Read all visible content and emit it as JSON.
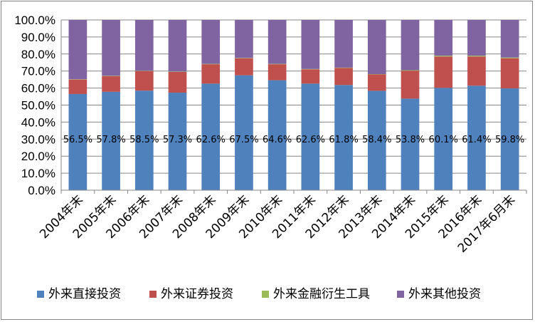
{
  "chart_data": {
    "type": "bar",
    "stacked": true,
    "percent_stacked": true,
    "categories": [
      "2004年末",
      "2005年末",
      "2006年末",
      "2007年末",
      "2008年末",
      "2009年末",
      "2010年末",
      "2011年末",
      "2012年末",
      "2013年末",
      "2014年末",
      "2015年末",
      "2016年末",
      "2017年6月末"
    ],
    "ylim": [
      0,
      100
    ],
    "yticks": [
      "0.0%",
      "10.0%",
      "20.0%",
      "30.0%",
      "40.0%",
      "50.0%",
      "60.0%",
      "70.0%",
      "80.0%",
      "90.0%",
      "100.0%"
    ],
    "grid": true,
    "legend_position": "bottom",
    "series": [
      {
        "name": "外来直接投资",
        "color": "#4f81bd",
        "values": [
          56.5,
          57.8,
          58.5,
          57.3,
          62.6,
          67.5,
          64.6,
          62.6,
          61.8,
          58.4,
          53.8,
          60.1,
          61.4,
          59.8
        ],
        "labels": [
          "56.5%",
          "57.8%",
          "58.5%",
          "57.3%",
          "62.6%",
          "67.5%",
          "64.6%",
          "62.6%",
          "61.8%",
          "58.4%",
          "53.8%",
          "60.1%",
          "61.4%",
          "59.8%"
        ]
      },
      {
        "name": "外来证券投资",
        "color": "#c0504d",
        "values": [
          8.5,
          9.2,
          11.5,
          12.2,
          11.4,
          10.0,
          9.4,
          8.4,
          10.0,
          9.6,
          16.4,
          18.4,
          17.1,
          17.7
        ]
      },
      {
        "name": "外来金融衍生工具",
        "color": "#9bbb59",
        "values": [
          0.2,
          0.2,
          0.2,
          0.2,
          0.2,
          0.2,
          0.2,
          0.2,
          0.2,
          0.2,
          0.3,
          0.5,
          0.5,
          0.4
        ]
      },
      {
        "name": "外来其他投资",
        "color": "#8064a2",
        "values": [
          34.8,
          32.8,
          29.8,
          30.3,
          25.8,
          22.3,
          25.8,
          28.8,
          28.0,
          31.8,
          29.5,
          21.0,
          21.0,
          22.1
        ]
      }
    ]
  }
}
